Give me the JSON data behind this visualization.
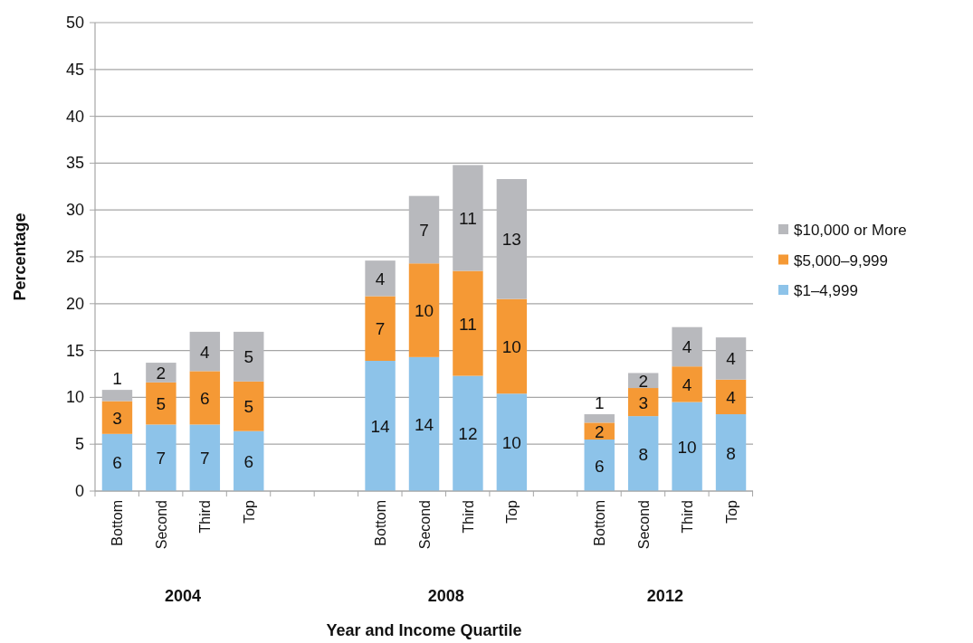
{
  "chart_data": {
    "type": "bar",
    "stacked": true,
    "xlabel": "Year and Income Quartile",
    "ylabel": "Percentage",
    "categories": [
      "Bottom",
      "Second",
      "Third",
      "Top",
      null,
      null,
      "Bottom",
      "Second",
      "Third",
      "Top",
      null,
      "Bottom",
      "Second",
      "Third",
      "Top"
    ],
    "annotations": [
      "2004",
      "2008",
      "2012"
    ],
    "series": [
      {
        "name": "$1–4,999",
        "color": "#8dc3e9",
        "values": [
          6.1,
          7.1,
          7.1,
          6.4,
          null,
          null,
          13.9,
          14.3,
          12.3,
          10.4,
          null,
          5.5,
          8.0,
          9.5,
          8.2
        ],
        "value_labels": [
          "6",
          "7",
          "7",
          "6",
          null,
          null,
          "14",
          "14",
          "12",
          "10",
          null,
          "6",
          "8",
          "10",
          "8"
        ]
      },
      {
        "name": "$5,000–9,999",
        "color": "#f59935",
        "values": [
          3.5,
          4.5,
          5.7,
          5.3,
          null,
          null,
          6.9,
          10.0,
          11.2,
          10.1,
          null,
          1.8,
          3.0,
          3.8,
          3.7
        ],
        "value_labels": [
          "3",
          "5",
          "6",
          "5",
          null,
          null,
          "7",
          "10",
          "11",
          "10",
          null,
          "2",
          "3",
          "4",
          "4"
        ]
      },
      {
        "name": "$10,000 or More",
        "color": "#b8b9bd",
        "values": [
          1.2,
          2.1,
          4.2,
          5.3,
          null,
          null,
          3.8,
          7.2,
          11.3,
          12.8,
          null,
          0.9,
          1.6,
          4.2,
          4.5
        ],
        "value_labels": [
          "1",
          "2",
          "4",
          "5",
          null,
          null,
          "4",
          "7",
          "11",
          "13",
          null,
          "1",
          "2",
          "4",
          "4"
        ]
      }
    ],
    "ylim": [
      0,
      50
    ],
    "yticks": [
      0,
      5,
      10,
      15,
      20,
      25,
      30,
      35,
      40,
      45,
      50
    ],
    "grid": "y",
    "legend": "right"
  }
}
